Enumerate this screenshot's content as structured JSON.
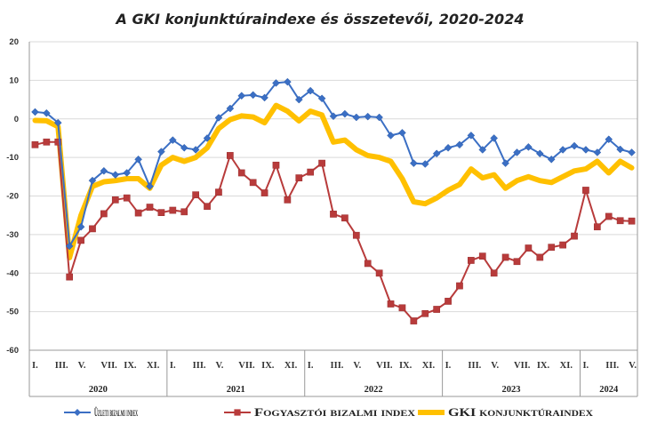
{
  "chart_data": {
    "type": "line",
    "title": "A GKI konjunktúraindexe és összetevői, 2020-2024",
    "ylim": [
      -60,
      20
    ],
    "yticks": [
      20,
      10,
      0,
      -10,
      -20,
      -30,
      -40,
      -50,
      -60
    ],
    "grid": true,
    "legend_position": "bottom",
    "month_tick_labels": [
      "I.",
      "III.",
      "V.",
      "VII.",
      "IX.",
      "XI."
    ],
    "years": [
      "2020",
      "2021",
      "2022",
      "2023",
      "2024"
    ],
    "months_per_year": [
      12,
      12,
      12,
      12,
      5
    ],
    "x": [
      "2020-01",
      "2020-02",
      "2020-03",
      "2020-04",
      "2020-05",
      "2020-06",
      "2020-07",
      "2020-08",
      "2020-09",
      "2020-10",
      "2020-11",
      "2020-12",
      "2021-01",
      "2021-02",
      "2021-03",
      "2021-04",
      "2021-05",
      "2021-06",
      "2021-07",
      "2021-08",
      "2021-09",
      "2021-10",
      "2021-11",
      "2021-12",
      "2022-01",
      "2022-02",
      "2022-03",
      "2022-04",
      "2022-05",
      "2022-06",
      "2022-07",
      "2022-08",
      "2022-09",
      "2022-10",
      "2022-11",
      "2022-12",
      "2023-01",
      "2023-02",
      "2023-03",
      "2023-04",
      "2023-05",
      "2023-06",
      "2023-07",
      "2023-08",
      "2023-09",
      "2023-10",
      "2023-11",
      "2023-12",
      "2024-01",
      "2024-02",
      "2024-03",
      "2024-04",
      "2024-05"
    ],
    "series": [
      {
        "name": "Üzleti bizalmi index",
        "color": "#3b6fc4",
        "marker": "diamond",
        "values": [
          1.8,
          1.5,
          -1,
          -33,
          -28,
          -16,
          -13.5,
          -14.5,
          -14,
          -10.5,
          -17.5,
          -8.5,
          -5.5,
          -7.5,
          -8,
          -5,
          0.3,
          2.7,
          6,
          6.2,
          5.5,
          9.3,
          9.6,
          5,
          7.3,
          5.3,
          0.7,
          1.3,
          0.4,
          0.6,
          0.4,
          -4.3,
          -3.6,
          -11.5,
          -11.7,
          -9,
          -7.5,
          -6.7,
          -4.3,
          -8,
          -5,
          -11.5,
          -8.7,
          -7.3,
          -9,
          -10.5,
          -8,
          -7,
          -8,
          -8.7,
          -5.3,
          -7.9,
          -8.7
        ]
      },
      {
        "name": "Fogyasztói bizalmi index",
        "color": "#b83b3b",
        "marker": "square",
        "values": [
          -6.7,
          -6,
          -6,
          -41,
          -31.5,
          -28.5,
          -24.6,
          -21,
          -20.5,
          -24.4,
          -22.9,
          -24.3,
          -23.7,
          -24.1,
          -19.7,
          -22.7,
          -19,
          -9.5,
          -14,
          -16.5,
          -19.2,
          -12,
          -21,
          -15.3,
          -13.8,
          -11.5,
          -24.7,
          -25.7,
          -30.2,
          -37.5,
          -40,
          -48,
          -49,
          -52.4,
          -50.5,
          -49.4,
          -47.3,
          -43.3,
          -36.7,
          -35.6,
          -40,
          -35.9,
          -37,
          -33.5,
          -35.9,
          -33.3,
          -32.7,
          -30.4,
          -18.5,
          -28,
          -25.3,
          -26.4,
          -26.5
        ]
      },
      {
        "name": "GKI konjunktúraindex",
        "color": "#ffc000",
        "marker": "none",
        "values": [
          -0.4,
          -0.5,
          -2,
          -36,
          -25,
          -17.5,
          -16.3,
          -16,
          -15.5,
          -15.5,
          -18,
          -12,
          -10,
          -11,
          -10,
          -7.5,
          -2.5,
          -0.2,
          0.8,
          0.5,
          -1,
          3.5,
          2,
          -0.5,
          2,
          1,
          -6,
          -5.5,
          -8,
          -9.5,
          -10,
          -11,
          -15.5,
          -21.5,
          -22,
          -20.5,
          -18.5,
          -17,
          -13,
          -15.3,
          -14.5,
          -18,
          -16,
          -15,
          -16,
          -16.5,
          -15,
          -13.5,
          -13,
          -11,
          -14,
          -11,
          -12.7
        ]
      }
    ]
  }
}
